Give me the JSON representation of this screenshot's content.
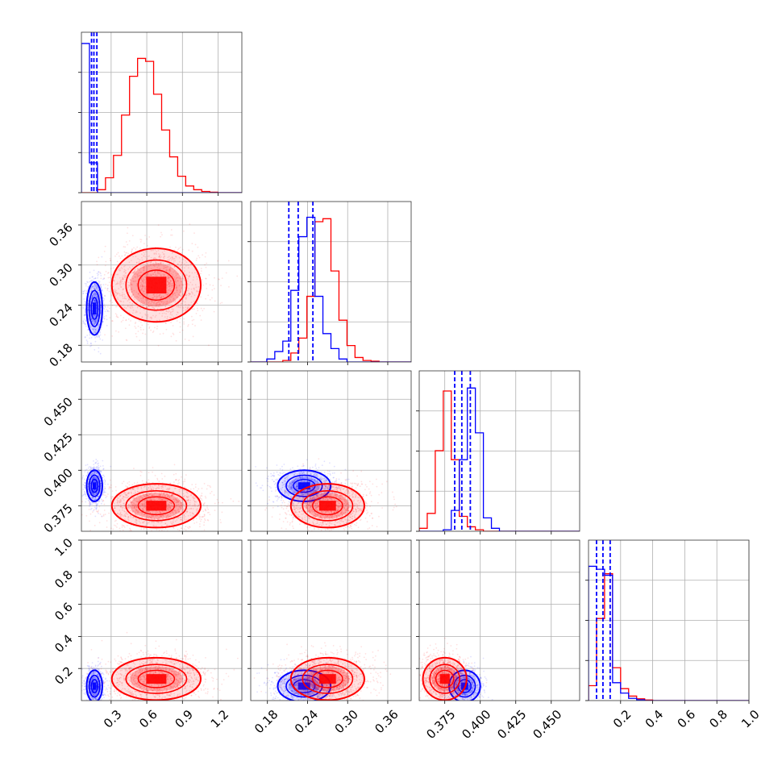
{
  "chart_data": {
    "type": "corner",
    "series": [
      {
        "name": "",
        "color": "#0000ff",
        "means": [
          0.16,
          0.235,
          0.389,
          0.09
        ],
        "sds": [
          0.03,
          0.018,
          0.005,
          0.045
        ],
        "quantile_lines": {
          "p0": [
            0.135,
            0.155,
            0.18
          ],
          "p1": [
            0.212,
            0.226,
            0.248
          ],
          "p2": [
            0.382,
            0.387,
            0.393
          ],
          "p3": [
            0.05,
            0.09,
            0.135
          ]
        }
      },
      {
        "name": "",
        "color": "#ff0000",
        "means": [
          0.68,
          0.27,
          0.375,
          0.135
        ],
        "sds": [
          0.17,
          0.025,
          0.007,
          0.06
        ]
      }
    ],
    "params": [
      {
        "range": [
          0.05,
          1.4
        ],
        "ticks": [
          0.3,
          0.6,
          0.9,
          1.2
        ],
        "tick_labels": [
          "0.3",
          "0.6",
          "0.9",
          "1.2"
        ]
      },
      {
        "range": [
          0.155,
          0.395
        ],
        "ticks": [
          0.18,
          0.24,
          0.3,
          0.36
        ],
        "tick_labels": [
          "0.18",
          "0.24",
          "0.30",
          "0.36"
        ]
      },
      {
        "range": [
          0.357,
          0.47
        ],
        "ticks": [
          0.375,
          0.4,
          0.425,
          0.45
        ],
        "tick_labels": [
          "0.375",
          "0.400",
          "0.425",
          "0.450"
        ]
      },
      {
        "range": [
          0.0,
          1.0
        ],
        "ticks": [
          0.2,
          0.4,
          0.6,
          0.8,
          1.0
        ],
        "tick_labels": [
          "0.2",
          "0.4",
          "0.6",
          "0.8",
          "1.0"
        ]
      }
    ],
    "histograms": [
      {
        "blue": [
          1.0,
          0.2,
          0,
          0,
          0,
          0,
          0,
          0,
          0,
          0,
          0,
          0,
          0,
          0,
          0,
          0,
          0,
          0,
          0,
          0
        ],
        "red": [
          0,
          0,
          0.02,
          0.1,
          0.25,
          0.52,
          0.78,
          0.9,
          0.88,
          0.66,
          0.42,
          0.24,
          0.11,
          0.045,
          0.02,
          0.008,
          0.003,
          0,
          0,
          0
        ]
      },
      {
        "blue": [
          0,
          0,
          0.02,
          0.07,
          0.14,
          0.48,
          0.84,
          0.97,
          0.44,
          0.19,
          0.09,
          0.02,
          0,
          0,
          0,
          0,
          0,
          0,
          0,
          0
        ],
        "red": [
          0,
          0,
          0,
          0,
          0.01,
          0.06,
          0.16,
          0.44,
          0.94,
          0.96,
          0.61,
          0.28,
          0.11,
          0.03,
          0.01,
          0.005,
          0,
          0,
          0,
          0
        ]
      },
      {
        "blue": [
          0,
          0,
          0,
          0.01,
          0.14,
          0.48,
          0.96,
          0.66,
          0.09,
          0.02,
          0,
          0,
          0,
          0,
          0,
          0,
          0,
          0,
          0,
          0
        ],
        "red": [
          0.02,
          0.12,
          0.54,
          0.94,
          0.48,
          0.1,
          0.03,
          0.01,
          0,
          0,
          0,
          0,
          0,
          0,
          0,
          0,
          0,
          0,
          0,
          0
        ]
      },
      {
        "blue": [
          0.9,
          0.88,
          0.84,
          0.12,
          0.05,
          0.015,
          0.005,
          0,
          0,
          0,
          0,
          0,
          0,
          0,
          0,
          0,
          0,
          0,
          0,
          0
        ],
        "red": [
          0.1,
          0.55,
          0.85,
          0.22,
          0.08,
          0.03,
          0.012,
          0.004,
          0,
          0,
          0,
          0,
          0,
          0,
          0,
          0,
          0,
          0,
          0,
          0
        ]
      }
    ],
    "ylim_note": "diagonal histograms normalized, no y tick labels",
    "grid": true,
    "legend": "none"
  }
}
